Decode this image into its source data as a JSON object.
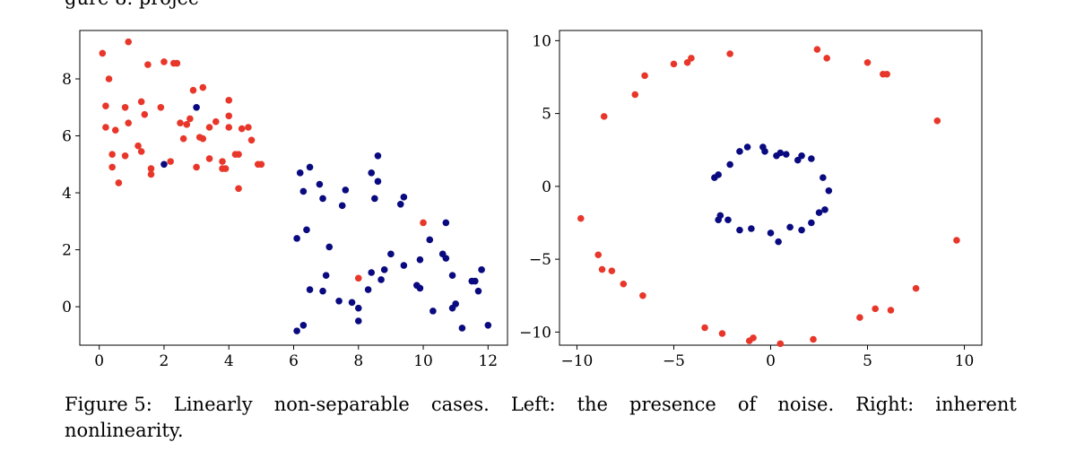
{
  "header_fragment": "gure 8. projec",
  "caption": {
    "line1_words": [
      "Figure 5:",
      "Linearly",
      "non-separable",
      "cases.",
      "Left:",
      "the",
      "presence",
      "of",
      "noise.",
      "Right:",
      "inherent"
    ],
    "line2": "nonlinearity."
  },
  "colors": {
    "red": "#e8372a",
    "blue": "#0a0a80"
  },
  "chart_data": [
    {
      "type": "scatter",
      "title": "",
      "xlabel": "",
      "ylabel": "",
      "xlim": [
        -0.6,
        12.6
      ],
      "ylim": [
        -1.35,
        9.7
      ],
      "xticks": [
        0,
        2,
        4,
        6,
        8,
        10,
        12
      ],
      "yticks": [
        0,
        2,
        4,
        6,
        8
      ],
      "series": [
        {
          "color": "#e8372a",
          "points": [
            [
              0.1,
              8.9
            ],
            [
              0.3,
              8.0
            ],
            [
              0.9,
              9.3
            ],
            [
              1.5,
              8.5
            ],
            [
              2.0,
              8.6
            ],
            [
              2.3,
              8.55
            ],
            [
              2.4,
              8.55
            ],
            [
              0.2,
              7.05
            ],
            [
              0.8,
              7.0
            ],
            [
              1.3,
              7.2
            ],
            [
              1.9,
              7.0
            ],
            [
              2.9,
              7.6
            ],
            [
              3.2,
              7.7
            ],
            [
              4.0,
              7.25
            ],
            [
              0.2,
              6.3
            ],
            [
              0.5,
              6.2
            ],
            [
              0.9,
              6.45
            ],
            [
              1.4,
              6.75
            ],
            [
              2.5,
              6.45
            ],
            [
              2.7,
              6.4
            ],
            [
              2.8,
              6.6
            ],
            [
              3.4,
              6.3
            ],
            [
              3.6,
              6.5
            ],
            [
              4.0,
              6.7
            ],
            [
              4.0,
              6.3
            ],
            [
              4.4,
              6.25
            ],
            [
              4.6,
              6.3
            ],
            [
              4.7,
              5.85
            ],
            [
              1.2,
              5.65
            ],
            [
              1.3,
              5.45
            ],
            [
              2.6,
              5.9
            ],
            [
              3.1,
              5.95
            ],
            [
              3.2,
              5.9
            ],
            [
              0.4,
              5.35
            ],
            [
              0.8,
              5.3
            ],
            [
              2.2,
              5.1
            ],
            [
              3.4,
              5.2
            ],
            [
              3.8,
              5.1
            ],
            [
              4.2,
              5.35
            ],
            [
              4.3,
              5.35
            ],
            [
              4.9,
              5.0
            ],
            [
              5.0,
              5.0
            ],
            [
              0.4,
              4.9
            ],
            [
              1.6,
              4.85
            ],
            [
              1.6,
              4.65
            ],
            [
              3.0,
              4.9
            ],
            [
              3.8,
              4.85
            ],
            [
              3.9,
              4.85
            ],
            [
              0.6,
              4.35
            ],
            [
              4.3,
              4.15
            ],
            [
              10.0,
              2.95
            ],
            [
              8.0,
              1.0
            ]
          ]
        },
        {
          "color": "#0a0a80",
          "points": [
            [
              3.0,
              7.0
            ],
            [
              2.0,
              5.0
            ],
            [
              8.6,
              5.3
            ],
            [
              6.5,
              4.9
            ],
            [
              8.4,
              4.7
            ],
            [
              6.2,
              4.7
            ],
            [
              8.6,
              4.4
            ],
            [
              6.8,
              4.3
            ],
            [
              6.3,
              4.05
            ],
            [
              7.6,
              4.1
            ],
            [
              6.9,
              3.8
            ],
            [
              7.5,
              3.55
            ],
            [
              9.4,
              3.85
            ],
            [
              8.5,
              3.8
            ],
            [
              9.3,
              3.6
            ],
            [
              10.7,
              2.95
            ],
            [
              6.4,
              2.7
            ],
            [
              6.1,
              2.4
            ],
            [
              10.2,
              2.35
            ],
            [
              7.1,
              2.1
            ],
            [
              10.6,
              1.85
            ],
            [
              9.0,
              1.85
            ],
            [
              10.7,
              1.7
            ],
            [
              9.4,
              1.45
            ],
            [
              8.8,
              1.3
            ],
            [
              11.8,
              1.3
            ],
            [
              9.9,
              1.65
            ],
            [
              10.9,
              1.1
            ],
            [
              7.0,
              1.1
            ],
            [
              8.4,
              1.2
            ],
            [
              11.6,
              0.9
            ],
            [
              11.5,
              0.9
            ],
            [
              9.8,
              0.75
            ],
            [
              9.9,
              0.65
            ],
            [
              6.5,
              0.6
            ],
            [
              6.9,
              0.55
            ],
            [
              8.7,
              0.95
            ],
            [
              8.3,
              0.6
            ],
            [
              11.7,
              0.55
            ],
            [
              7.4,
              0.2
            ],
            [
              7.8,
              0.15
            ],
            [
              11.0,
              0.1
            ],
            [
              8.0,
              -0.05
            ],
            [
              10.9,
              -0.05
            ],
            [
              10.3,
              -0.15
            ],
            [
              8.0,
              -0.5
            ],
            [
              6.3,
              -0.65
            ],
            [
              12.0,
              -0.65
            ],
            [
              11.2,
              -0.75
            ],
            [
              6.1,
              -0.85
            ]
          ]
        }
      ]
    },
    {
      "type": "scatter",
      "title": "",
      "xlabel": "",
      "ylabel": "",
      "xlim": [
        -10.9,
        10.9
      ],
      "ylim": [
        -10.9,
        10.7
      ],
      "xticks": [
        -10,
        -5,
        0,
        5,
        10
      ],
      "yticks": [
        -10,
        -5,
        0,
        5,
        10
      ],
      "series": [
        {
          "color": "#e8372a",
          "points": [
            [
              2.4,
              9.4
            ],
            [
              2.9,
              8.8
            ],
            [
              5.0,
              8.5
            ],
            [
              5.8,
              7.7
            ],
            [
              6.0,
              7.7
            ],
            [
              8.6,
              4.5
            ],
            [
              9.6,
              -3.7
            ],
            [
              7.5,
              -7.0
            ],
            [
              6.2,
              -8.5
            ],
            [
              5.4,
              -8.4
            ],
            [
              4.6,
              -9.0
            ],
            [
              2.2,
              -10.5
            ],
            [
              0.5,
              -10.8
            ],
            [
              -0.9,
              -10.4
            ],
            [
              -1.1,
              -10.6
            ],
            [
              -2.5,
              -10.1
            ],
            [
              -3.4,
              -9.7
            ],
            [
              -6.6,
              -7.5
            ],
            [
              -7.6,
              -6.7
            ],
            [
              -8.2,
              -5.8
            ],
            [
              -8.7,
              -5.7
            ],
            [
              -8.9,
              -4.7
            ],
            [
              -9.8,
              -2.2
            ],
            [
              -8.6,
              4.8
            ],
            [
              -7.0,
              6.3
            ],
            [
              -6.5,
              7.6
            ],
            [
              -5.0,
              8.4
            ],
            [
              -4.3,
              8.5
            ],
            [
              -4.1,
              8.8
            ],
            [
              -2.1,
              9.1
            ]
          ]
        },
        {
          "color": "#0a0a80",
          "points": [
            [
              -0.4,
              2.7
            ],
            [
              -1.2,
              2.7
            ],
            [
              -1.6,
              2.4
            ],
            [
              -2.1,
              1.5
            ],
            [
              -2.7,
              0.8
            ],
            [
              -2.9,
              0.6
            ],
            [
              -2.6,
              -2.0
            ],
            [
              -2.7,
              -2.3
            ],
            [
              -2.2,
              -2.3
            ],
            [
              -1.6,
              -3.0
            ],
            [
              -1.0,
              -2.9
            ],
            [
              0.0,
              -3.2
            ],
            [
              0.4,
              -3.8
            ],
            [
              1.0,
              -2.8
            ],
            [
              1.6,
              -3.0
            ],
            [
              2.1,
              -2.5
            ],
            [
              2.5,
              -1.8
            ],
            [
              2.8,
              -1.6
            ],
            [
              3.0,
              -0.3
            ],
            [
              2.7,
              0.6
            ],
            [
              2.1,
              1.9
            ],
            [
              1.4,
              1.8
            ],
            [
              1.6,
              2.1
            ],
            [
              0.8,
              2.2
            ],
            [
              0.5,
              2.3
            ],
            [
              0.3,
              2.1
            ],
            [
              -0.3,
              2.4
            ]
          ]
        }
      ]
    }
  ]
}
